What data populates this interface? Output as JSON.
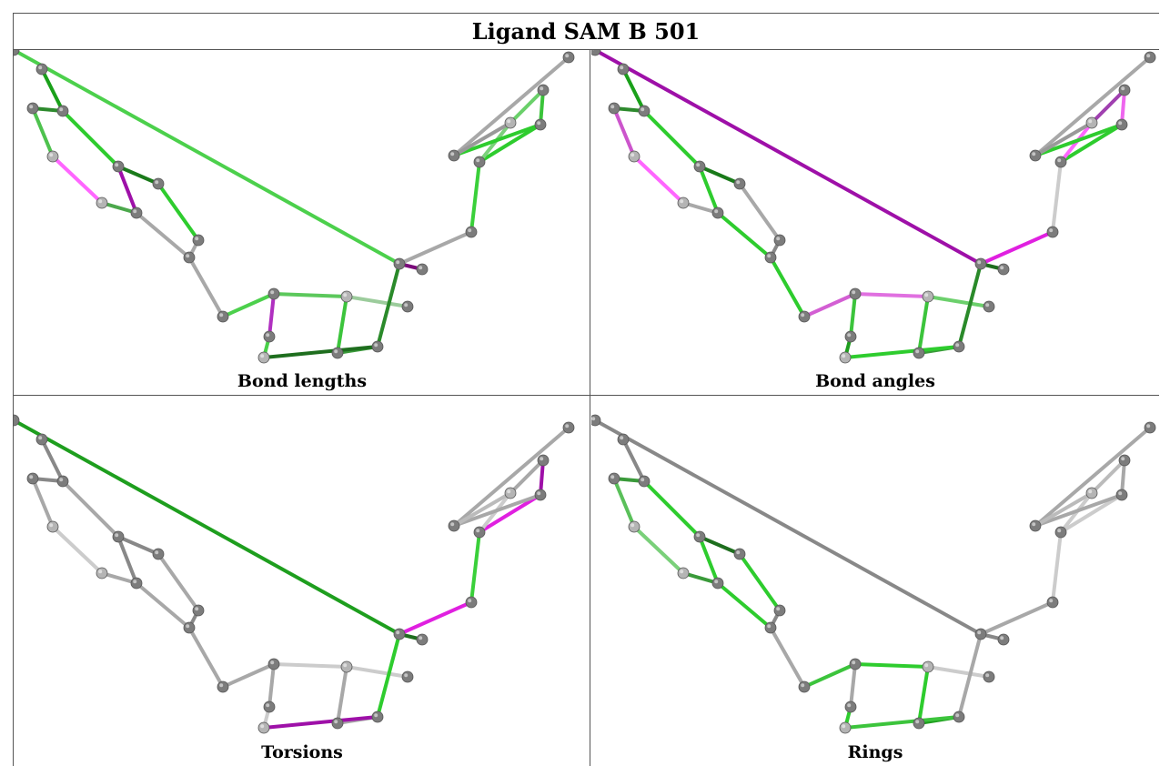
{
  "title": "Ligand SAM B 501",
  "panels": [
    {
      "caption": "Bond lengths",
      "bond_colors": {
        "0-1": "#1aa01a",
        "1-3": "#2ecc2e",
        "1-2": "#2d8a2d",
        "2-4": "#4ec24e",
        "4-6": "#ff66ff",
        "6-7": "#4ca84c",
        "3-7": "#9e10a8",
        "3-5": "#1a7a1a",
        "5-10": "#2ecc2e",
        "7-9": "#a8a8a8",
        "9-10": "#a8a8a8",
        "9-11": "#a8a8a8",
        "11-12": "#4cd04c",
        "12-13": "#5cc85c",
        "12-14": "#b030c0",
        "13-16": "#3cc43c",
        "16-17": "#3a9a3a",
        "14-15": "#4ad04a",
        "15-17": "#1e6e1e",
        "13-18": "#9ccc9c",
        "17-19": "#2a8a2a",
        "19-20": "#7a0a7a",
        "19-21": "#4cd04c",
        "19-22": "#a8a8a8",
        "22-23": "#3ad03a",
        "23-24": "#2ecc2e",
        "23-26": "#7cd07c",
        "24-27": "#2ecc2e",
        "24-25": "#3ac43a",
        "27-28": "#a8a8a8",
        "26-25": "#6ad06a",
        "27-26": "#999999"
      }
    },
    {
      "caption": "Bond angles",
      "bond_colors": {
        "0-1": "#1aa01a",
        "1-3": "#2ecc2e",
        "1-2": "#2d8a2d",
        "2-4": "#cc55cc",
        "4-6": "#ff66ff",
        "6-7": "#a8a8a8",
        "3-7": "#2ecc2e",
        "3-5": "#1a7a1a",
        "5-10": "#a8a8a8",
        "7-9": "#2ecc2e",
        "9-10": "#888888",
        "9-11": "#2ecc2e",
        "11-12": "#d35fd3",
        "12-13": "#e070e0",
        "12-14": "#3cc43c",
        "13-16": "#3cc43c",
        "16-17": "#3a9a3a",
        "14-15": "#1e9e1e",
        "15-17": "#2ecc2e",
        "13-18": "#6cd06c",
        "17-19": "#2a8a2a",
        "19-20": "#1e6e1e",
        "19-21": "#9e10a8",
        "19-22": "#e020e0",
        "22-23": "#cccccc",
        "23-24": "#2ecc2e",
        "23-26": "#ff66ff",
        "24-27": "#2ecc2e",
        "24-25": "#ee66ee",
        "27-28": "#a8a8a8",
        "26-25": "#a040b0",
        "27-26": "#999999"
      }
    },
    {
      "caption": "Torsions",
      "bond_colors": {
        "0-1": "#888888",
        "1-3": "#a8a8a8",
        "1-2": "#888888",
        "2-4": "#a8a8a8",
        "4-6": "#cccccc",
        "6-7": "#a8a8a8",
        "3-7": "#888888",
        "3-5": "#888888",
        "5-10": "#a8a8a8",
        "7-9": "#a8a8a8",
        "9-10": "#888888",
        "9-11": "#a8a8a8",
        "11-12": "#a8a8a8",
        "12-13": "#cccccc",
        "12-14": "#a8a8a8",
        "13-16": "#a8a8a8",
        "16-17": "#a8a8a8",
        "14-15": "#cccccc",
        "15-17": "#9e10a8",
        "13-18": "#cccccc",
        "17-19": "#2ecc2e",
        "19-20": "#1e6e1e",
        "19-21": "#1e9e1e",
        "19-22": "#e020e0",
        "22-23": "#3ad03a",
        "23-24": "#e020e0",
        "23-26": "#cccccc",
        "24-27": "#a8a8a8",
        "24-25": "#9e10a8",
        "27-28": "#a8a8a8",
        "26-25": "#a8a8a8",
        "27-26": "#bbbbbb"
      }
    },
    {
      "caption": "Rings",
      "bond_colors": {
        "0-1": "#888888",
        "1-3": "#2ecc2e",
        "1-2": "#3a9a3a",
        "2-4": "#5ac05a",
        "4-6": "#7ad07a",
        "6-7": "#3a9a3a",
        "3-7": "#2ecc2e",
        "3-5": "#1e6e1e",
        "5-10": "#2ecc2e",
        "7-9": "#2ecc2e",
        "9-10": "#888888",
        "9-11": "#a8a8a8",
        "11-12": "#3cc43c",
        "12-13": "#2ecc2e",
        "12-14": "#a8a8a8",
        "13-16": "#2ecc2e",
        "16-17": "#1e9e1e",
        "14-15": "#2ecc2e",
        "15-17": "#3cc43c",
        "13-18": "#cccccc",
        "17-19": "#a8a8a8",
        "19-20": "#888888",
        "19-21": "#888888",
        "19-22": "#a8a8a8",
        "22-23": "#cccccc",
        "23-24": "#cccccc",
        "23-26": "#cccccc",
        "24-27": "#a8a8a8",
        "24-25": "#a8a8a8",
        "27-28": "#a8a8a8",
        "26-25": "#bbbbbb",
        "27-26": "#bbbbbb"
      }
    }
  ]
}
